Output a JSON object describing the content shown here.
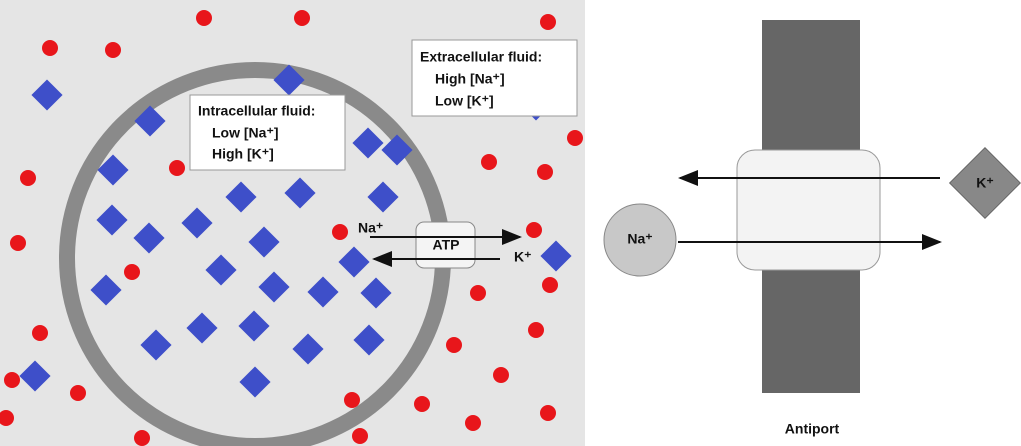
{
  "left": {
    "extracellular": {
      "title": "Extracellular fluid:",
      "lines": [
        "High [Na⁺]",
        "Low [K⁺]"
      ]
    },
    "intracellular": {
      "title": "Intracellular fluid:",
      "lines": [
        "Low [Na⁺]",
        "High [K⁺]"
      ]
    },
    "pump": {
      "na": "Na⁺",
      "atp": "ATP",
      "k": "K⁺"
    }
  },
  "right": {
    "na": "Na⁺",
    "k": "K⁺",
    "caption": "Antiport"
  }
}
